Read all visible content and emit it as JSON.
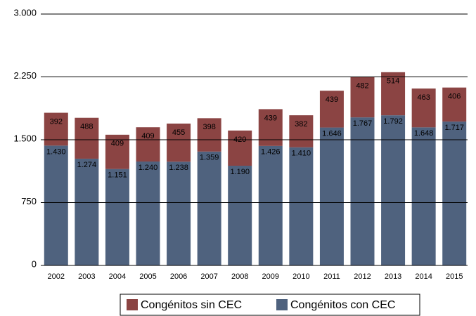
{
  "chart_data": {
    "type": "stacked_bar",
    "categories": [
      "2002",
      "2003",
      "2004",
      "2005",
      "2006",
      "2007",
      "2008",
      "2009",
      "2010",
      "2011",
      "2012",
      "2013",
      "2014",
      "2015"
    ],
    "series": [
      {
        "name": "Congénitos con CEC",
        "color": "#4f627e",
        "values": [
          1430,
          1274,
          1151,
          1240,
          1238,
          1359,
          1190,
          1426,
          1410,
          1646,
          1767,
          1792,
          1648,
          1717
        ],
        "value_labels": [
          "1.430",
          "1.274",
          "1.151",
          "1.240",
          "1.238",
          "1.359",
          "1.190",
          "1.426",
          "1.410",
          "1.646",
          "1.767",
          "1.792",
          "1.648",
          "1.717"
        ]
      },
      {
        "name": "Congénitos sin CEC",
        "color": "#8b4443",
        "values": [
          392,
          488,
          409,
          409,
          455,
          398,
          420,
          439,
          382,
          439,
          482,
          514,
          463,
          406
        ]
      }
    ],
    "ylim": [
      0,
      3000
    ],
    "yticks": [
      0,
      750,
      {
        "value": 1500,
        "label": "1.500"
      },
      {
        "value": 2250,
        "label": "2.250"
      },
      {
        "value": 3000,
        "label": "3.000"
      }
    ],
    "grid": true
  }
}
